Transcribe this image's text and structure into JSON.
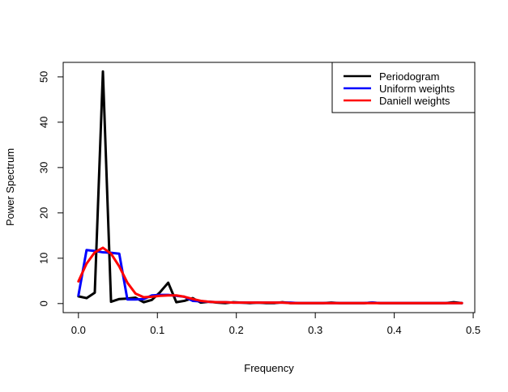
{
  "chart_data": {
    "type": "line",
    "title": "",
    "xlabel": "Frequency",
    "ylabel": "Power Spectrum",
    "xlim": [
      -0.0193,
      0.502
    ],
    "ylim": [
      -2.0,
      53.2
    ],
    "x_ticks": [
      0.0,
      0.1,
      0.2,
      0.3,
      0.4,
      0.5
    ],
    "x_tick_labels": [
      "0.0",
      "0.1",
      "0.2",
      "0.3",
      "0.4",
      "0.5"
    ],
    "y_ticks": [
      0,
      10,
      20,
      30,
      40,
      50
    ],
    "y_tick_labels": [
      "0",
      "10",
      "20",
      "30",
      "40",
      "50"
    ],
    "grid": false,
    "legend_position": "top-right",
    "series": [
      {
        "name": "Periodogram",
        "color": "#000000",
        "x": [
          0.0,
          0.0103,
          0.0207,
          0.031,
          0.0413,
          0.0517,
          0.062,
          0.0723,
          0.0827,
          0.093,
          0.1033,
          0.1137,
          0.124,
          0.1343,
          0.1447,
          0.155,
          0.1653,
          0.1757,
          0.186,
          0.1963,
          0.2067,
          0.217,
          0.2273,
          0.2377,
          0.248,
          0.2583,
          0.2687,
          0.279,
          0.2893,
          0.2997,
          0.31,
          0.3203,
          0.3307,
          0.341,
          0.3513,
          0.3617,
          0.372,
          0.3823,
          0.3927,
          0.403,
          0.4133,
          0.4237,
          0.434,
          0.4443,
          0.4547,
          0.465,
          0.4753,
          0.4857
        ],
        "values": [
          1.6,
          1.2,
          2.4,
          51.2,
          0.4,
          1.0,
          1.1,
          1.3,
          0.3,
          0.8,
          2.5,
          4.6,
          0.3,
          0.6,
          1.2,
          0.2,
          0.4,
          0.2,
          0.1,
          0.3,
          0.2,
          0.1,
          0.2,
          0.1,
          0.1,
          0.3,
          0.1,
          0.1,
          0.1,
          0.1,
          0.1,
          0.2,
          0.1,
          0.1,
          0.1,
          0.1,
          0.2,
          0.1,
          0.1,
          0.1,
          0.1,
          0.1,
          0.1,
          0.1,
          0.1,
          0.1,
          0.3,
          0.1
        ]
      },
      {
        "name": "Uniform weights",
        "color": "#0000ff",
        "x": [
          0.0,
          0.0103,
          0.0207,
          0.031,
          0.0413,
          0.0517,
          0.062,
          0.0723,
          0.0827,
          0.093,
          0.1033,
          0.1137,
          0.124,
          0.1343,
          0.1447,
          0.155,
          0.1653,
          0.1757,
          0.186,
          0.1963,
          0.2067,
          0.217,
          0.2273,
          0.2377,
          0.248,
          0.2583,
          0.2687,
          0.279,
          0.2893,
          0.2997,
          0.31,
          0.3203,
          0.3307,
          0.341,
          0.3513,
          0.3617,
          0.372,
          0.3823,
          0.3927,
          0.403,
          0.4133,
          0.4237,
          0.434,
          0.4443,
          0.4547,
          0.465,
          0.4753,
          0.4857
        ],
        "values": [
          1.8,
          11.8,
          11.6,
          11.3,
          11.2,
          11.0,
          0.9,
          0.9,
          1.0,
          1.8,
          1.9,
          1.9,
          1.7,
          1.5,
          0.6,
          0.5,
          0.4,
          0.3,
          0.3,
          0.2,
          0.2,
          0.2,
          0.2,
          0.2,
          0.2,
          0.2,
          0.2,
          0.1,
          0.1,
          0.1,
          0.1,
          0.1,
          0.1,
          0.1,
          0.1,
          0.1,
          0.2,
          0.1,
          0.1,
          0.1,
          0.1,
          0.1,
          0.1,
          0.1,
          0.1,
          0.1,
          0.1,
          0.1
        ]
      },
      {
        "name": "Daniell weights",
        "color": "#ff0000",
        "x": [
          0.0,
          0.0103,
          0.0207,
          0.031,
          0.0413,
          0.0517,
          0.062,
          0.0723,
          0.0827,
          0.093,
          0.1033,
          0.1137,
          0.124,
          0.1343,
          0.1447,
          0.155,
          0.1653,
          0.1757,
          0.186,
          0.1963,
          0.2067,
          0.217,
          0.2273,
          0.2377,
          0.248,
          0.2583,
          0.2687,
          0.279,
          0.2893,
          0.2997,
          0.31,
          0.3203,
          0.3307,
          0.341,
          0.3513,
          0.3617,
          0.372,
          0.3823,
          0.3927,
          0.403,
          0.4133,
          0.4237,
          0.434,
          0.4443,
          0.4547,
          0.465,
          0.4753,
          0.4857
        ],
        "values": [
          4.9,
          8.8,
          11.3,
          12.3,
          11.0,
          8.2,
          4.6,
          2.2,
          1.4,
          1.5,
          1.7,
          1.8,
          1.8,
          1.5,
          1.0,
          0.6,
          0.4,
          0.3,
          0.3,
          0.2,
          0.2,
          0.2,
          0.2,
          0.2,
          0.2,
          0.2,
          0.1,
          0.1,
          0.1,
          0.1,
          0.1,
          0.1,
          0.1,
          0.1,
          0.1,
          0.1,
          0.1,
          0.1,
          0.1,
          0.1,
          0.1,
          0.1,
          0.1,
          0.1,
          0.1,
          0.1,
          0.1,
          0.1
        ]
      }
    ]
  }
}
